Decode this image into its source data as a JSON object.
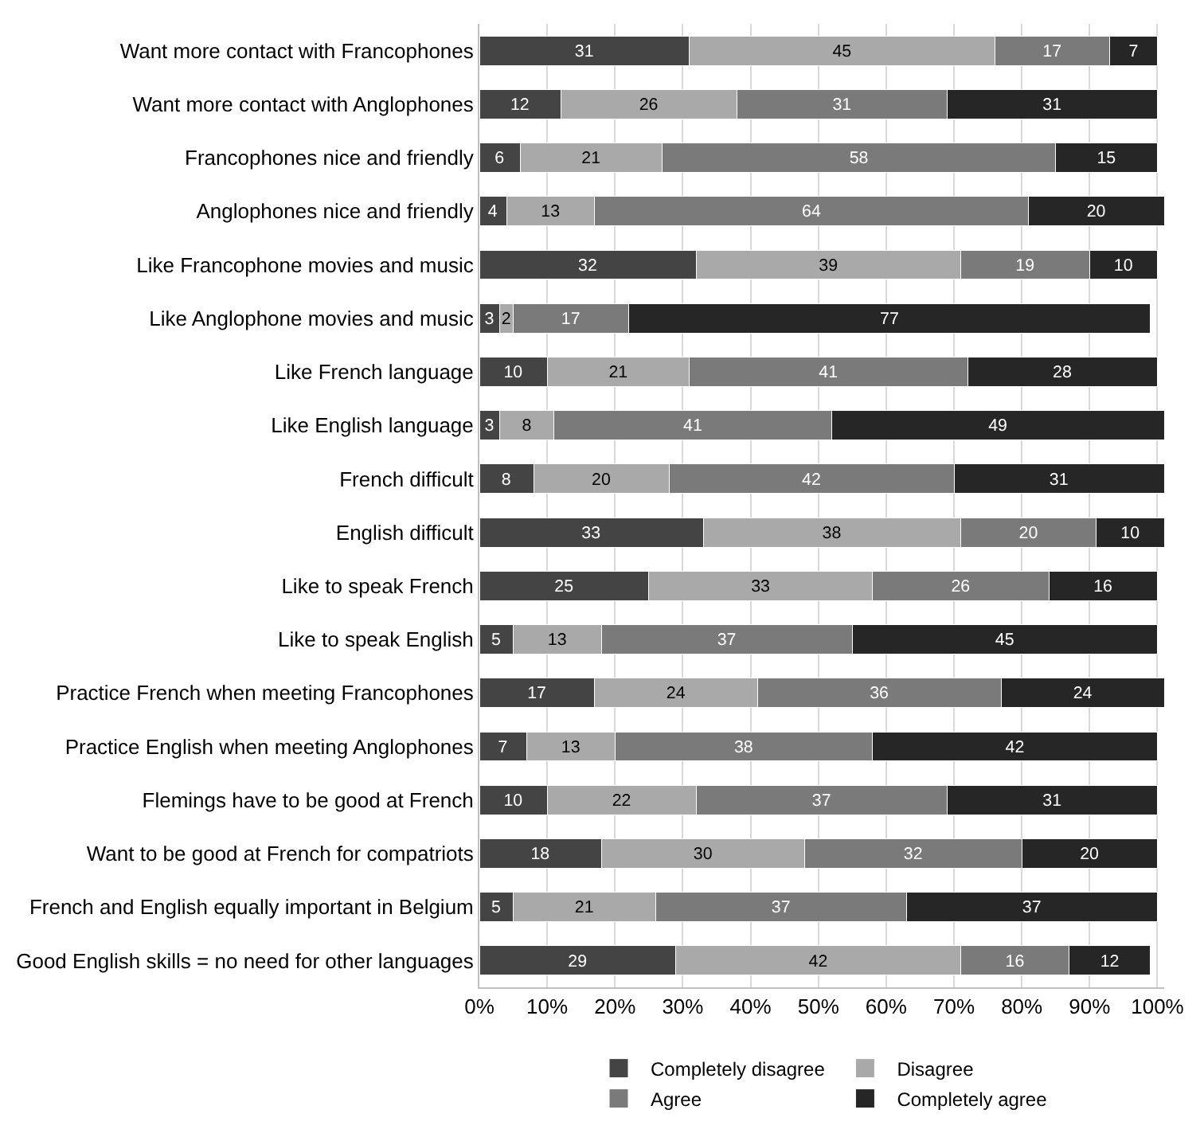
{
  "chart_data": {
    "type": "bar",
    "orientation": "horizontal",
    "stacked": true,
    "data_labels": true,
    "grid": "x",
    "legend": "bottom",
    "categories": [
      "Want more contact with Francophones",
      "Want more contact with Anglophones",
      "Francophones nice and friendly",
      "Anglophones nice and friendly",
      "Like Francophone movies and music",
      "Like Anglophone movies and music",
      "Like French language",
      "Like English language",
      "French difficult",
      "English difficult",
      "Like to speak French",
      "Like to speak English",
      "Practice French when meeting Francophones",
      "Practice English when meeting Anglophones",
      "Flemings have to be good at French",
      "Want to be good at French for compatriots",
      "French and English equally important in Belgium",
      "Good English skills = no need for other languages"
    ],
    "series": [
      {
        "name": "Completely disagree",
        "color": "#444444",
        "values": [
          31,
          12,
          6,
          4,
          32,
          3,
          10,
          3,
          8,
          33,
          25,
          5,
          17,
          7,
          10,
          18,
          5,
          29
        ]
      },
      {
        "name": "Disagree",
        "color": "#a9a9a9",
        "values": [
          45,
          26,
          21,
          13,
          39,
          2,
          21,
          8,
          20,
          38,
          33,
          13,
          24,
          13,
          22,
          30,
          21,
          42
        ]
      },
      {
        "name": "Agree",
        "color": "#7a7a7a",
        "values": [
          17,
          31,
          58,
          64,
          19,
          17,
          41,
          41,
          42,
          20,
          26,
          37,
          36,
          38,
          37,
          32,
          37,
          16
        ]
      },
      {
        "name": "Completely agree",
        "color": "#262626",
        "values": [
          7,
          31,
          15,
          20,
          10,
          77,
          28,
          49,
          31,
          10,
          16,
          45,
          24,
          42,
          31,
          20,
          37,
          12
        ]
      }
    ],
    "xlim": [
      0,
      101
    ],
    "xticks": [
      {
        "value": 0,
        "label": "0%"
      },
      {
        "value": 10,
        "label": "10%"
      },
      {
        "value": 20,
        "label": "20%"
      },
      {
        "value": 30,
        "label": "30%"
      },
      {
        "value": 40,
        "label": "40%"
      },
      {
        "value": 50,
        "label": "50%"
      },
      {
        "value": 60,
        "label": "60%"
      },
      {
        "value": 70,
        "label": "70%"
      },
      {
        "value": 80,
        "label": "80%"
      },
      {
        "value": 90,
        "label": "90%"
      },
      {
        "value": 100,
        "label": "100%"
      }
    ]
  }
}
